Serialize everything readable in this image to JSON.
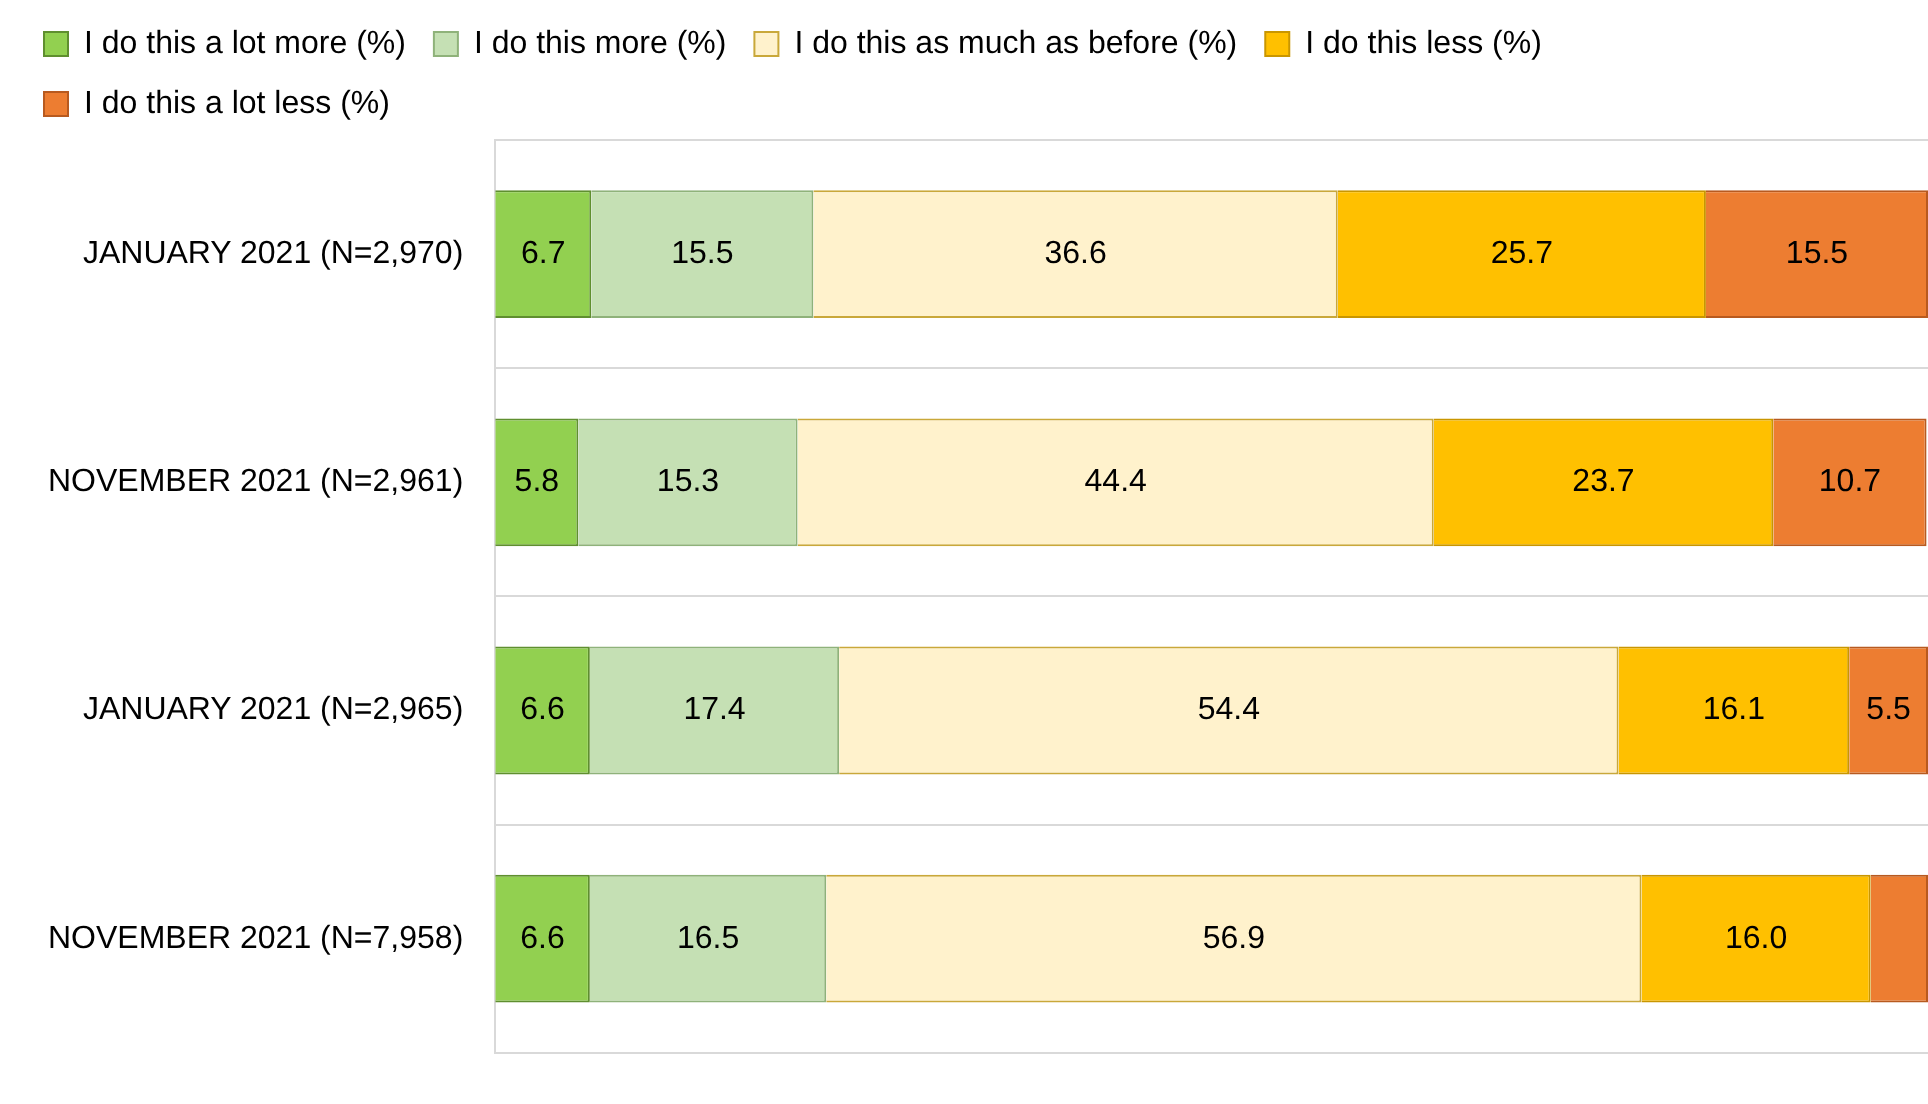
{
  "chart_data": {
    "type": "bar",
    "orientation": "horizontal",
    "stacked": true,
    "categories": [
      "JANUARY 2021 (N=2,970)",
      "NOVEMBER 2021 (N=2,961)",
      "JANUARY 2021 (N=2,965)",
      "NOVEMBER 2021 (N=7,958)"
    ],
    "series": [
      {
        "name": "I do this a lot more (%)",
        "color": "#92d050",
        "values": [
          6.7,
          5.8,
          6.6,
          6.6
        ],
        "value_labels": [
          "6.7",
          "5.8",
          "6.6",
          "6.6"
        ]
      },
      {
        "name": "I do this more (%)",
        "color": "#c5e0b4",
        "values": [
          15.5,
          15.3,
          17.4,
          16.5
        ],
        "value_labels": [
          "15.5",
          "15.3",
          "17.4",
          "16.5"
        ]
      },
      {
        "name": "I do this as much as before (%)",
        "color": "#fff2cc",
        "values": [
          36.6,
          44.4,
          54.4,
          56.9
        ],
        "value_labels": [
          "36.6",
          "44.4",
          "54.4",
          "56.9"
        ]
      },
      {
        "name": "I do this less (%)",
        "color": "#ffc000",
        "values": [
          25.7,
          23.7,
          16.1,
          16.0
        ],
        "value_labels": [
          "25.7",
          "23.7",
          "16.1",
          "16.0"
        ]
      },
      {
        "name": "I do this a lot less (%)",
        "color": "#ed7d31",
        "values": [
          15.5,
          10.7,
          5.5,
          4.0
        ],
        "value_labels": [
          "15.5",
          "10.7",
          "5.5",
          null
        ]
      }
    ],
    "xlim": [
      0,
      100
    ],
    "tick_labels": "y",
    "grid": "y",
    "legend": "top"
  }
}
